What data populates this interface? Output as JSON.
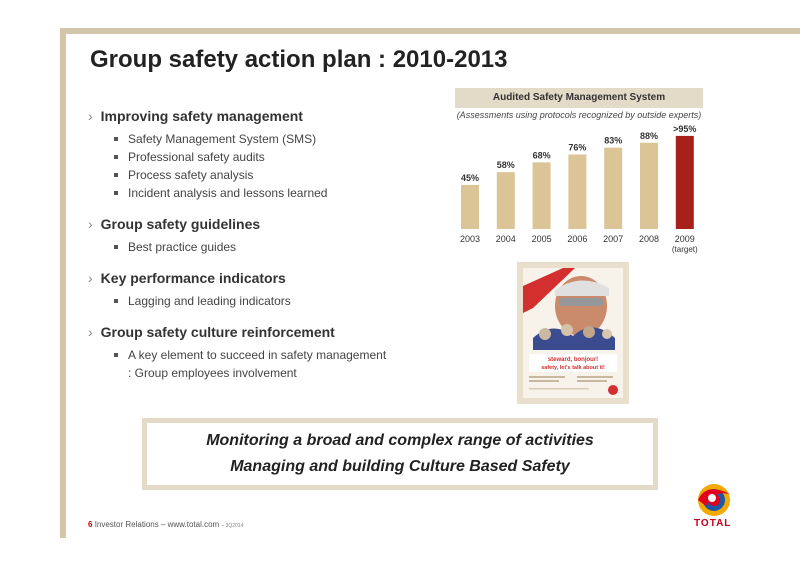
{
  "title": "Group safety action plan : 2010-2013",
  "sections": [
    {
      "heading": "Improving safety management",
      "items": [
        "Safety Management System (SMS)",
        "Professional safety audits",
        "Process safety analysis",
        "Incident analysis and lessons learned"
      ]
    },
    {
      "heading": "Group safety guidelines",
      "items": [
        "Best practice guides"
      ]
    },
    {
      "heading": "Key performance indicators",
      "items": [
        "Lagging and leading indicators"
      ]
    },
    {
      "heading": "Group safety culture reinforcement",
      "items": [
        "A key element to succeed in safety management : Group employees involvement"
      ]
    }
  ],
  "chart_data": {
    "type": "bar",
    "title": "Audited Safety Management System",
    "subtitle": "(Assessments using protocols recognized by outside experts)",
    "categories": [
      "2003",
      "2004",
      "2005",
      "2006",
      "2007",
      "2008",
      "2009"
    ],
    "category_notes": [
      "",
      "",
      "",
      "",
      "",
      "",
      "(target)"
    ],
    "values": [
      45,
      58,
      68,
      76,
      83,
      88,
      95
    ],
    "value_labels": [
      "45%",
      "58%",
      "68%",
      "76%",
      "83%",
      "88%",
      ">95%"
    ],
    "colors": [
      "#dbc495",
      "#dbc495",
      "#dbc495",
      "#dbc495",
      "#dbc495",
      "#dbc495",
      "#a8201a"
    ],
    "ylim": [
      0,
      100
    ]
  },
  "poster": {
    "headline1": "steward, bonjour!",
    "headline2": "safety, let's talk about it!"
  },
  "banner": {
    "line1": "Monitoring a broad and complex range of activities",
    "line2": "Managing and building Culture Based Safety"
  },
  "footer": {
    "page": "6",
    "text": "Investor Relations – www.total.com",
    "code": "– 3Q2014"
  },
  "logo": {
    "text": "TOTAL"
  },
  "colors": {
    "frame": "#d2c5a9",
    "bar": "#dbc495",
    "target_bar": "#a8201a",
    "brand": "#c4001a"
  }
}
